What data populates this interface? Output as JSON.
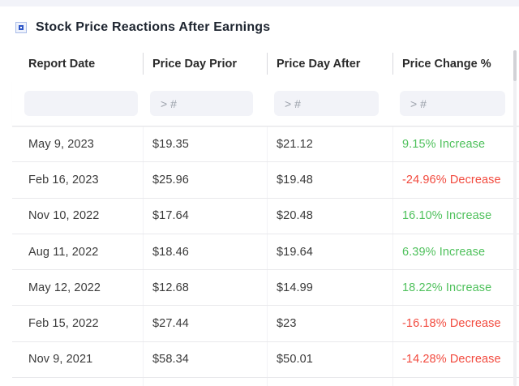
{
  "page": {
    "title": "Stock Price Reactions After Earnings"
  },
  "colors": {
    "accent_blue": "#2d56c8",
    "increase": "#4fc15c",
    "decrease": "#f24a3e"
  },
  "table": {
    "columns": [
      {
        "key": "report_date",
        "label": "Report Date",
        "filter_placeholder": ""
      },
      {
        "key": "price_day_prior",
        "label": "Price Day Prior",
        "filter_placeholder": "> #"
      },
      {
        "key": "price_day_after",
        "label": "Price Day After",
        "filter_placeholder": "> #"
      },
      {
        "key": "price_change_pct",
        "label": "Price Change %",
        "filter_placeholder": "> #"
      }
    ],
    "rows": [
      {
        "report_date": "May 9, 2023",
        "price_day_prior": "$19.35",
        "price_day_after": "$21.12",
        "price_change_pct": "9.15% Increase",
        "direction": "increase"
      },
      {
        "report_date": "Feb 16, 2023",
        "price_day_prior": "$25.96",
        "price_day_after": "$19.48",
        "price_change_pct": "-24.96% Decrease",
        "direction": "decrease"
      },
      {
        "report_date": "Nov 10, 2022",
        "price_day_prior": "$17.64",
        "price_day_after": "$20.48",
        "price_change_pct": "16.10% Increase",
        "direction": "increase"
      },
      {
        "report_date": "Aug 11, 2022",
        "price_day_prior": "$18.46",
        "price_day_after": "$19.64",
        "price_change_pct": "6.39% Increase",
        "direction": "increase"
      },
      {
        "report_date": "May 12, 2022",
        "price_day_prior": "$12.68",
        "price_day_after": "$14.99",
        "price_change_pct": "18.22% Increase",
        "direction": "increase"
      },
      {
        "report_date": "Feb 15, 2022",
        "price_day_prior": "$27.44",
        "price_day_after": "$23",
        "price_change_pct": "-16.18% Decrease",
        "direction": "decrease"
      },
      {
        "report_date": "Nov 9, 2021",
        "price_day_prior": "$58.34",
        "price_day_after": "$50.01",
        "price_change_pct": "-14.28% Decrease",
        "direction": "decrease"
      }
    ]
  }
}
